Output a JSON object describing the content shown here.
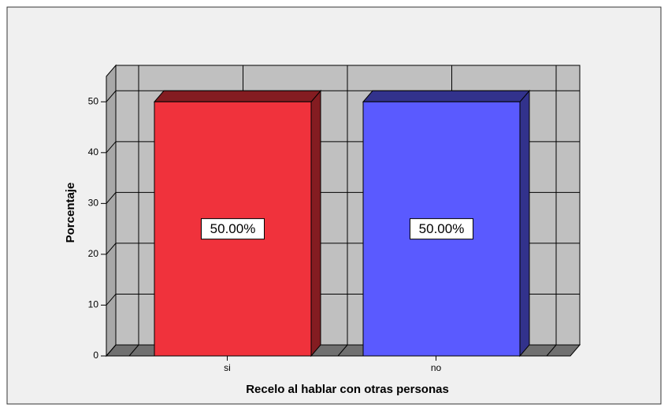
{
  "chart_data": {
    "type": "bar3d",
    "x_label": "Recelo al hablar con otras personas",
    "y_label": "Porcentaje",
    "categories": [
      "si",
      "no"
    ],
    "values": [
      50,
      50
    ],
    "value_labels": [
      "50.00%",
      "50.00%"
    ],
    "colors": [
      "#f0323c",
      "#5a5aff"
    ],
    "ylim": [
      0,
      55
    ],
    "yticks": [
      0,
      10,
      20,
      30,
      40,
      50
    ],
    "grid": true
  }
}
